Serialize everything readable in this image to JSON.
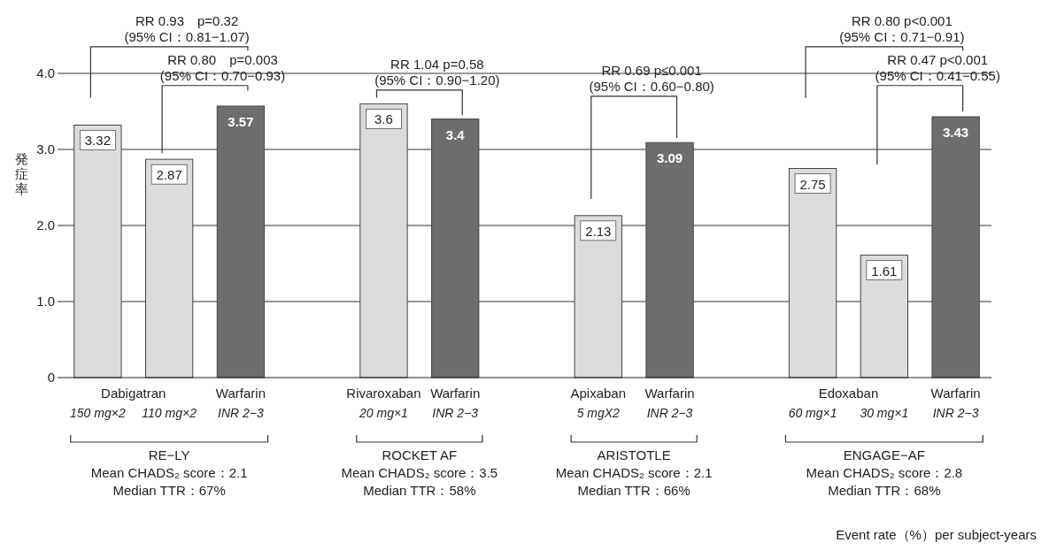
{
  "chart_data": {
    "type": "bar",
    "ylabel": "発症率",
    "categories": [
      "150 mg×2",
      "110 mg×2",
      "INR 2−3",
      null,
      "20 mg×1",
      "INR 2−3",
      null,
      "5 mgX2",
      "INR 2−3",
      null,
      "60 mg×1",
      "30 mg×1",
      "INR 2−3"
    ],
    "values": [
      3.32,
      2.87,
      3.57,
      null,
      3.6,
      3.4,
      null,
      2.13,
      3.09,
      null,
      2.75,
      1.61,
      3.43
    ],
    "colors": [
      "#dcdcdc",
      "#dcdcdc",
      "#6e6e6e",
      null,
      "#dcdcdc",
      "#6e6e6e",
      null,
      "#dcdcdc",
      "#6e6e6e",
      null,
      "#dcdcdc",
      "#dcdcdc",
      "#6e6e6e"
    ],
    "data_labels": true,
    "ylim": [
      0,
      4
    ],
    "yticks": [
      0,
      {
        "value": 1,
        "label": "1.0"
      },
      {
        "value": 2,
        "label": "2.0"
      },
      {
        "value": 3,
        "label": "3.0"
      },
      {
        "value": 4,
        "label": "4.0"
      }
    ],
    "grid": "y",
    "annotations": [
      "RR 0.93　p=0.32\n(95% CI：0.81−1.07)",
      "RR 0.80　p=0.003\n(95% CI：0.70−0.93)",
      "RR 1.04 p=0.58\n(95% CI：0.90−1.20)",
      "RR 0.69 p≤0.001\n(95% CI：0.60−0.80)",
      "RR 0.80 p<0.001\n(95% CI：0.71−0.91)",
      "RR 0.47 p<0.001\n(95% CI：0.41−0.55)",
      "Dabigatran",
      "Warfarin",
      "Rivaroxaban",
      "Warfarin",
      "Apixaban",
      "Warfarin",
      "Edoxaban",
      "Warfarin",
      "RE−LY\nMean CHADS₂ score：2.1\nMedian TTR：67%",
      "ROCKET AF\nMean CHADS₂ score：3.5\nMedian TTR：58%",
      "ARISTOTLE\nMean CHADS₂ score：2.1\nMedian TTR：66%",
      "ENGAGE−AF\nMean CHADS₂ score：2.8\nMedian TTR：68%",
      "Event rate（%）per subject-years"
    ]
  }
}
